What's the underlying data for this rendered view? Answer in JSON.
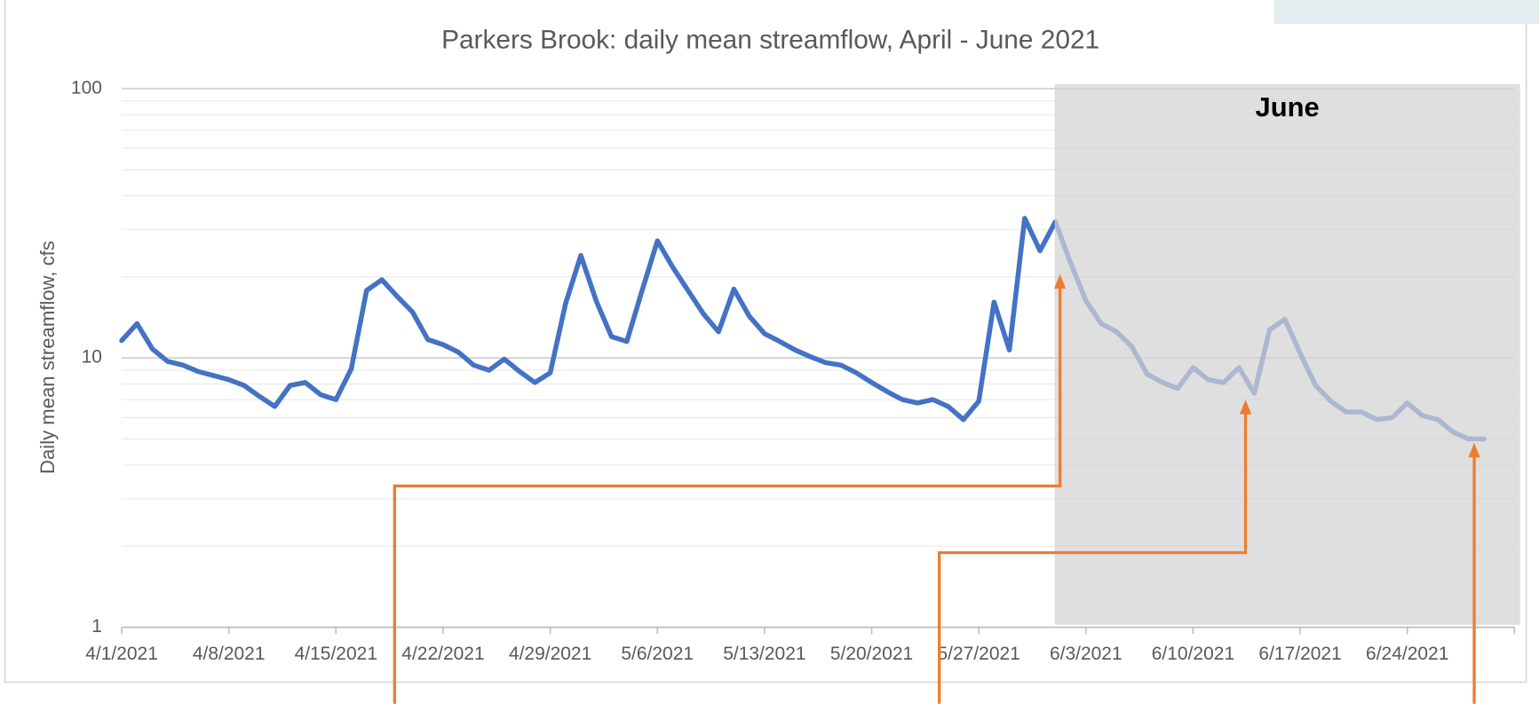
{
  "chart_data": {
    "type": "line",
    "title": "Parkers Brook: daily mean streamflow, April - June 2021",
    "y_label": "Daily mean streamflow, cfs",
    "yscale": "log",
    "color": "#4472c4",
    "x": [
      "4/1/2021",
      "4/2/2021",
      "4/3/2021",
      "4/4/2021",
      "4/5/2021",
      "4/6/2021",
      "4/7/2021",
      "4/8/2021",
      "4/9/2021",
      "4/10/2021",
      "4/11/2021",
      "4/12/2021",
      "4/13/2021",
      "4/14/2021",
      "4/15/2021",
      "4/16/2021",
      "4/17/2021",
      "4/18/2021",
      "4/19/2021",
      "4/20/2021",
      "4/21/2021",
      "4/22/2021",
      "4/23/2021",
      "4/24/2021",
      "4/25/2021",
      "4/26/2021",
      "4/27/2021",
      "4/28/2021",
      "4/29/2021",
      "4/30/2021",
      "5/1/2021",
      "5/2/2021",
      "5/3/2021",
      "5/4/2021",
      "5/5/2021",
      "5/6/2021",
      "5/7/2021",
      "5/8/2021",
      "5/9/2021",
      "5/10/2021",
      "5/11/2021",
      "5/12/2021",
      "5/13/2021",
      "5/14/2021",
      "5/15/2021",
      "5/16/2021",
      "5/17/2021",
      "5/18/2021",
      "5/19/2021",
      "5/20/2021",
      "5/21/2021",
      "5/22/2021",
      "5/23/2021",
      "5/24/2021",
      "5/25/2021",
      "5/26/2021",
      "5/27/2021",
      "5/28/2021",
      "5/29/2021",
      "5/30/2021",
      "5/31/2021",
      "6/1/2021",
      "6/2/2021",
      "6/3/2021",
      "6/4/2021",
      "6/5/2021",
      "6/6/2021",
      "6/7/2021",
      "6/8/2021",
      "6/9/2021",
      "6/10/2021",
      "6/11/2021",
      "6/12/2021",
      "6/13/2021",
      "6/14/2021",
      "6/15/2021",
      "6/16/2021",
      "6/17/2021",
      "6/18/2021",
      "6/19/2021",
      "6/20/2021",
      "6/21/2021",
      "6/22/2021",
      "6/23/2021",
      "6/24/2021",
      "6/25/2021",
      "6/26/2021",
      "6/27/2021",
      "6/28/2021",
      "6/29/2021"
    ],
    "values": [
      11.6,
      13.4,
      10.8,
      9.7,
      9.4,
      8.9,
      8.6,
      8.3,
      7.9,
      7.2,
      6.6,
      7.9,
      8.1,
      7.3,
      7.0,
      9.1,
      17.8,
      19.5,
      16.9,
      14.8,
      11.7,
      11.2,
      10.5,
      9.4,
      9.0,
      9.9,
      8.9,
      8.1,
      8.8,
      15.9,
      24.0,
      16.3,
      12.0,
      11.5,
      17.8,
      27.2,
      21.7,
      17.8,
      14.6,
      12.5,
      18.0,
      14.3,
      12.3,
      11.5,
      10.7,
      10.1,
      9.6,
      9.4,
      8.8,
      8.1,
      7.5,
      7.0,
      6.8,
      7.0,
      6.6,
      5.9,
      6.9,
      16.1,
      10.7,
      33.0,
      25.0,
      32.0,
      22.5,
      16.3,
      13.4,
      12.5,
      11.0,
      8.7,
      8.1,
      7.7,
      9.2,
      8.3,
      8.1,
      9.2,
      7.4,
      12.7,
      13.9,
      10.4,
      7.9,
      6.9,
      6.3,
      6.3,
      5.9,
      6.0,
      6.8,
      6.1,
      5.9,
      5.3,
      5.0,
      5.0
    ],
    "xlim": [
      "4/1/2021",
      "7/1/2021"
    ],
    "xticks": [
      "4/1/2021",
      "4/8/2021",
      "4/15/2021",
      "4/22/2021",
      "4/29/2021",
      "5/6/2021",
      "5/13/2021",
      "5/20/2021",
      "5/27/2021",
      "6/3/2021",
      "6/10/2021",
      "6/17/2021",
      "6/24/2021"
    ],
    "ylim": [
      1,
      100
    ],
    "yticks": [
      1,
      10,
      100
    ],
    "minor_gridlines": [
      2,
      3,
      4,
      5,
      6,
      7,
      8,
      9,
      20,
      30,
      40,
      50,
      60,
      70,
      80,
      90
    ],
    "grid": true,
    "shaded_region": {
      "x": [
        "6/1/2021",
        "7/1/2021"
      ],
      "label": "June",
      "color": "#d3d3d3"
    },
    "annotation_color": "#ed7d31"
  }
}
